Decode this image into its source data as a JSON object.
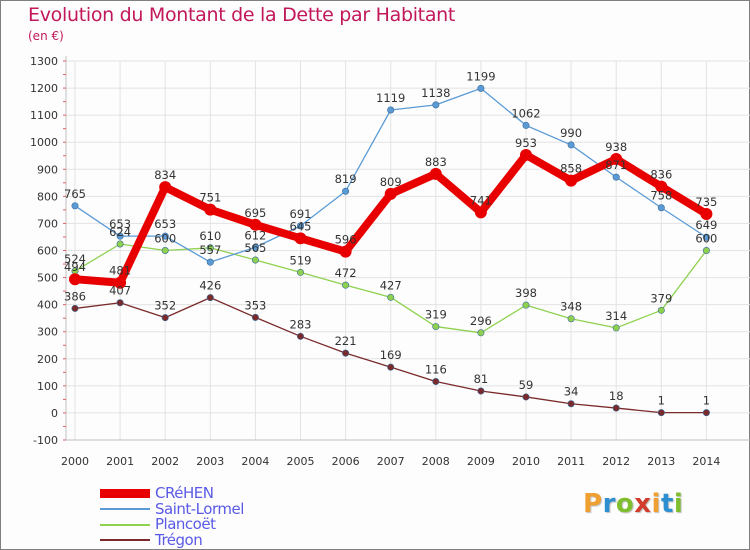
{
  "title": "Evolution du Montant de la Dette par Habitant",
  "unit": "(en €)",
  "logo": {
    "letters": [
      "P",
      "r",
      "o",
      "x",
      "i",
      "t",
      "i"
    ],
    "colors": [
      "#f0a030",
      "#2e8fd0",
      "#7fbf2f",
      "#d23c2c",
      "#f0a030",
      "#2e8fd0",
      "#7fbf2f"
    ]
  },
  "chart_data": {
    "type": "line",
    "x": [
      "2000",
      "2001",
      "2002",
      "2003",
      "2004",
      "2005",
      "2006",
      "2007",
      "2008",
      "2009",
      "2010",
      "2011",
      "2012",
      "2013",
      "2014"
    ],
    "y_ticks": [
      "-100",
      "0",
      "100",
      "200",
      "300",
      "400",
      "500",
      "600",
      "700",
      "800",
      "900",
      "1000",
      "1100",
      "1200",
      "1300"
    ],
    "ylim": [
      -100,
      1300
    ],
    "grid": true,
    "legend_position": "bottom-left",
    "series": [
      {
        "name": "CRéHEN",
        "color": "#e80000",
        "values": [
          494,
          481,
          834,
          751,
          695,
          645,
          596,
          809,
          883,
          741,
          953,
          858,
          938,
          836,
          735
        ],
        "labels": [
          "494",
          "481",
          "834",
          "751",
          "695",
          "645",
          "596",
          "809",
          "883",
          "741",
          "953",
          "858",
          "938",
          "836",
          "735"
        ]
      },
      {
        "name": "Saint-Lormel",
        "color": "#5b9bd5",
        "values": [
          765,
          653,
          653,
          557,
          612,
          691,
          819,
          1119,
          1138,
          1199,
          1062,
          990,
          871,
          758,
          649
        ],
        "labels": [
          "765",
          "653",
          "653",
          "557",
          "612",
          "691",
          "819",
          "1119",
          "1138",
          "1199",
          "1062",
          "990",
          "871",
          "758",
          "649"
        ]
      },
      {
        "name": "Plancoët",
        "color": "#8fd14f",
        "values": [
          524,
          624,
          600,
          610,
          565,
          519,
          472,
          427,
          319,
          296,
          398,
          348,
          314,
          379,
          600
        ],
        "labels": [
          "524",
          "624",
          "600",
          "610",
          "565",
          "519",
          "472",
          "427",
          "319",
          "296",
          "398",
          "348",
          "314",
          "379",
          "600"
        ]
      },
      {
        "name": "Trégon",
        "color": "#7a2a2a",
        "values": [
          386,
          407,
          352,
          426,
          353,
          283,
          221,
          169,
          116,
          81,
          59,
          34,
          18,
          1,
          1
        ],
        "labels": [
          "386",
          "407",
          "352",
          "426",
          "353",
          "283",
          "221",
          "169",
          "116",
          "81",
          "59",
          "34",
          "18",
          "1",
          "1"
        ]
      }
    ]
  }
}
